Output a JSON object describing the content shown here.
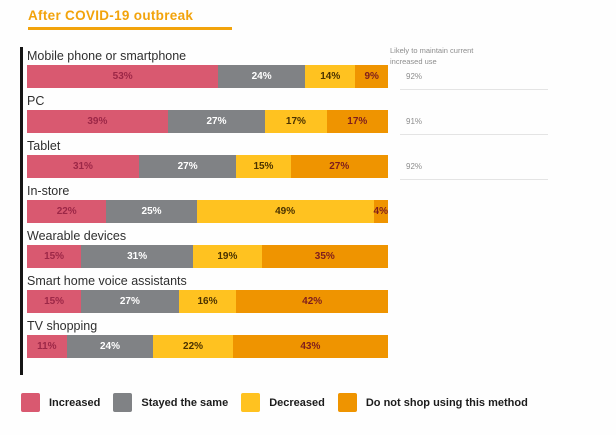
{
  "title": "After COVID-19 outbreak",
  "chart_data": {
    "type": "bar",
    "orientation": "horizontal-stacked",
    "title": "After COVID-19 outbreak",
    "xlim": [
      0,
      100
    ],
    "value_suffix": "%",
    "legend_position": "bottom",
    "categories": [
      "Mobile phone or smartphone",
      "PC",
      "Tablet",
      "In-store",
      "Wearable devices",
      "Smart home voice assistants",
      "TV shopping"
    ],
    "series": [
      {
        "key": "increased",
        "name": "Increased",
        "color": "#d95970",
        "label_color": "#9c2747",
        "values": [
          53,
          39,
          31,
          22,
          15,
          15,
          11
        ]
      },
      {
        "key": "stayed-the-same",
        "name": "Stayed the same",
        "color": "#808285",
        "label_color": "#ffffff",
        "values": [
          24,
          27,
          27,
          25,
          31,
          27,
          24
        ]
      },
      {
        "key": "decreased",
        "name": "Decreased",
        "color": "#ffc220",
        "label_color": "#4a3200",
        "values": [
          14,
          17,
          15,
          49,
          19,
          16,
          22
        ]
      },
      {
        "key": "do-not-shop",
        "name": "Do not shop using this method",
        "color": "#ef9400",
        "label_color": "#7e1d1d",
        "values": [
          9,
          17,
          27,
          4,
          35,
          42,
          43
        ]
      }
    ],
    "annotation": {
      "header": "Likely to maintain current increased use",
      "values": [
        "92%",
        "91%",
        "92%"
      ]
    }
  }
}
